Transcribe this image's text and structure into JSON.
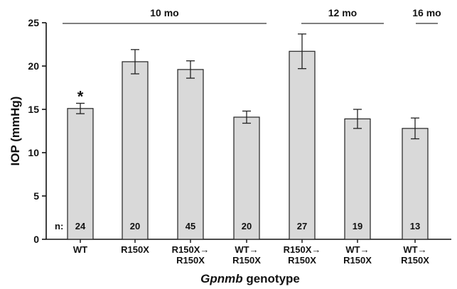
{
  "chart_data": {
    "type": "bar",
    "ylabel": "IOP (mmHg)",
    "xlabel_italic": "Gpnmb",
    "xlabel_rest": " genotype",
    "ylim": [
      0,
      25
    ],
    "yticks": [
      "0",
      "5",
      "10",
      "15",
      "20",
      "25"
    ],
    "n_prefix": "n:",
    "bar_color": "#d9d9d9",
    "categories": [
      {
        "line1": "WT",
        "line2": "",
        "value": 15.1,
        "error": 0.6,
        "n": "24",
        "mark": "*"
      },
      {
        "line1": "R150X",
        "line2": "",
        "value": 20.5,
        "error": 1.4,
        "n": "20",
        "mark": ""
      },
      {
        "line1": "R150X→",
        "line2": "R150X",
        "value": 19.6,
        "error": 1.0,
        "n": "45",
        "mark": ""
      },
      {
        "line1": "WT→",
        "line2": "R150X",
        "value": 14.1,
        "error": 0.7,
        "n": "20",
        "mark": ""
      },
      {
        "line1": "R150X→",
        "line2": "R150X",
        "value": 21.7,
        "error": 2.0,
        "n": "27",
        "mark": ""
      },
      {
        "line1": "WT→",
        "line2": "R150X",
        "value": 13.9,
        "error": 1.1,
        "n": "19",
        "mark": ""
      },
      {
        "line1": "WT→",
        "line2": "R150X",
        "value": 12.8,
        "error": 1.2,
        "n": "13",
        "mark": ""
      }
    ],
    "age_groups": [
      {
        "label": "10 mo",
        "from": 0,
        "to": 3
      },
      {
        "label": "12 mo",
        "from": 4,
        "to": 5
      },
      {
        "label": "16 mo",
        "from": 6,
        "to": 6
      }
    ]
  }
}
